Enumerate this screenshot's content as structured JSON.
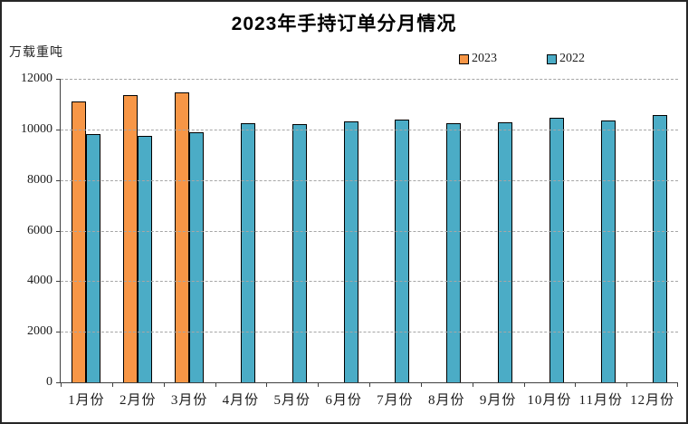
{
  "title": "2023年手持订单分月情况",
  "y_axis_unit": "万载重吨",
  "legend": {
    "items": [
      {
        "label": "2023",
        "color": "#F79646"
      },
      {
        "label": "2022",
        "color": "#4BACC6"
      }
    ]
  },
  "colors": {
    "bar_2023": "#F79646",
    "bar_2022": "#4BACC6",
    "bar_border": "#000000",
    "gridline": "#a6a6a6",
    "axis": "#404040"
  },
  "chart_data": {
    "type": "bar",
    "title": "2023年手持订单分月情况",
    "xlabel": "",
    "ylabel": "万载重吨",
    "categories": [
      "1月份",
      "2月份",
      "3月份",
      "4月份",
      "5月份",
      "6月份",
      "7月份",
      "8月份",
      "9月份",
      "10月份",
      "11月份",
      "12月份"
    ],
    "series": [
      {
        "name": "2023",
        "color": "#F79646",
        "values": [
          11100,
          11360,
          11450,
          null,
          null,
          null,
          null,
          null,
          null,
          null,
          null,
          null
        ]
      },
      {
        "name": "2022",
        "color": "#4BACC6",
        "values": [
          9820,
          9760,
          9890,
          10240,
          10210,
          10300,
          10390,
          10230,
          10290,
          10450,
          10360,
          10550
        ]
      }
    ],
    "ylim": [
      0,
      12000
    ],
    "yticks": [
      0,
      2000,
      4000,
      6000,
      8000,
      10000,
      12000
    ],
    "grid": "horizontal-dashed",
    "legend_position": "top-right"
  }
}
